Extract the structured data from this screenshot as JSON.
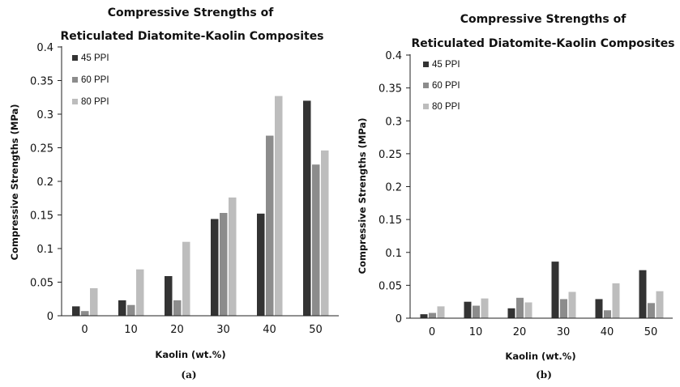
{
  "chart_data": [
    {
      "type": "bar",
      "panel_label": "(a)",
      "title_lines": [
        "Compressive Strengths of",
        "Reticulated Diatomite-Kaolin Composites"
      ],
      "xlabel": "Kaolin (wt.%)",
      "ylabel": "Compressive Strengths (MPa)",
      "categories": [
        "0",
        "10",
        "20",
        "30",
        "40",
        "50"
      ],
      "ylim": [
        0,
        0.4
      ],
      "yticks": [
        "0",
        "0.05",
        "0.1",
        "0.15",
        "0.2",
        "0.25",
        "0.3",
        "0.35",
        "0.4"
      ],
      "grid": false,
      "legend_position": "top-left",
      "series": [
        {
          "name": "45 PPI",
          "color": "#333333",
          "values": [
            0.014,
            0.023,
            0.059,
            0.144,
            0.152,
            0.32
          ]
        },
        {
          "name": "60 PPI",
          "color": "#8c8c8c",
          "values": [
            0.007,
            0.016,
            0.023,
            0.153,
            0.268,
            0.225
          ]
        },
        {
          "name": "80 PPI",
          "color": "#bdbdbd",
          "values": [
            0.041,
            0.069,
            0.11,
            0.176,
            0.327,
            0.246
          ]
        }
      ]
    },
    {
      "type": "bar",
      "panel_label": "(b)",
      "title_lines": [
        "Compressive Strengths of",
        "Reticulated  Diatomite-Kaolin Composites"
      ],
      "xlabel": "Kaolin (wt.%)",
      "ylabel": "Compressive Strengths (MPa)",
      "categories": [
        "0",
        "10",
        "20",
        "30",
        "40",
        "50"
      ],
      "ylim": [
        0,
        0.4
      ],
      "yticks": [
        "0",
        "0.05",
        "0.1",
        "0.15",
        "0.2",
        "0.25",
        "0.3",
        "0.35",
        "0.4"
      ],
      "grid": false,
      "legend_position": "top-left",
      "series": [
        {
          "name": "45 PPI",
          "color": "#333333",
          "values": [
            0.006,
            0.025,
            0.015,
            0.086,
            0.029,
            0.073
          ]
        },
        {
          "name": "60 PPI",
          "color": "#8c8c8c",
          "values": [
            0.008,
            0.019,
            0.031,
            0.029,
            0.012,
            0.023
          ]
        },
        {
          "name": "80 PPI",
          "color": "#bdbdbd",
          "values": [
            0.018,
            0.03,
            0.024,
            0.04,
            0.053,
            0.041
          ]
        }
      ]
    }
  ]
}
